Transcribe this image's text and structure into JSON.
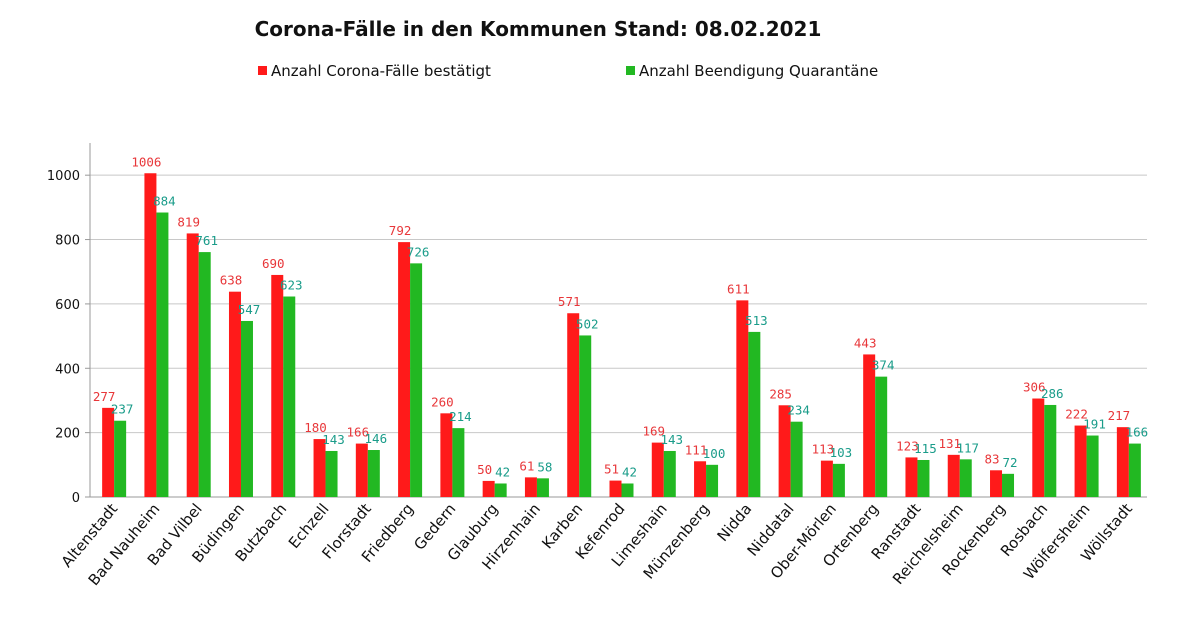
{
  "chart_data": {
    "type": "bar",
    "title": "Corona-Fälle in den Kommunen Stand: 08.02.2021",
    "xlabel": "",
    "ylabel": "",
    "ylim": [
      0,
      1100
    ],
    "yticks": [
      0,
      200,
      400,
      600,
      800,
      1000
    ],
    "grid": true,
    "legend_position": "top",
    "categories": [
      "Altenstadt",
      "Bad Nauheim",
      "Bad Vilbel",
      "Büdingen",
      "Butzbach",
      "Echzell",
      "Florstadt",
      "Friedberg",
      "Gedern",
      "Glauburg",
      "Hirzenhain",
      "Karben",
      "Kefenrod",
      "Limeshain",
      "Münzenberg",
      "Nidda",
      "Niddatal",
      "Ober-Mörlen",
      "Ortenberg",
      "Ranstadt",
      "Reichelsheim",
      "Rockenberg",
      "Rosbach",
      "Wölfersheim",
      "Wöllstadt"
    ],
    "series": [
      {
        "name": "Anzahl Corona-Fälle bestätigt",
        "color": "#ff1a1a",
        "label_color": "#e8373a",
        "values": [
          277,
          1006,
          819,
          638,
          690,
          180,
          166,
          792,
          260,
          50,
          61,
          571,
          51,
          169,
          111,
          611,
          285,
          113,
          443,
          123,
          131,
          83,
          306,
          222,
          217
        ]
      },
      {
        "name": "Anzahl Beendigung Quarantäne",
        "color": "#22b822",
        "label_color": "#1a9c8a",
        "values": [
          237,
          884,
          761,
          547,
          623,
          143,
          146,
          726,
          214,
          42,
          58,
          502,
          42,
          143,
          100,
          513,
          234,
          103,
          374,
          115,
          117,
          72,
          286,
          191,
          166
        ]
      }
    ]
  }
}
